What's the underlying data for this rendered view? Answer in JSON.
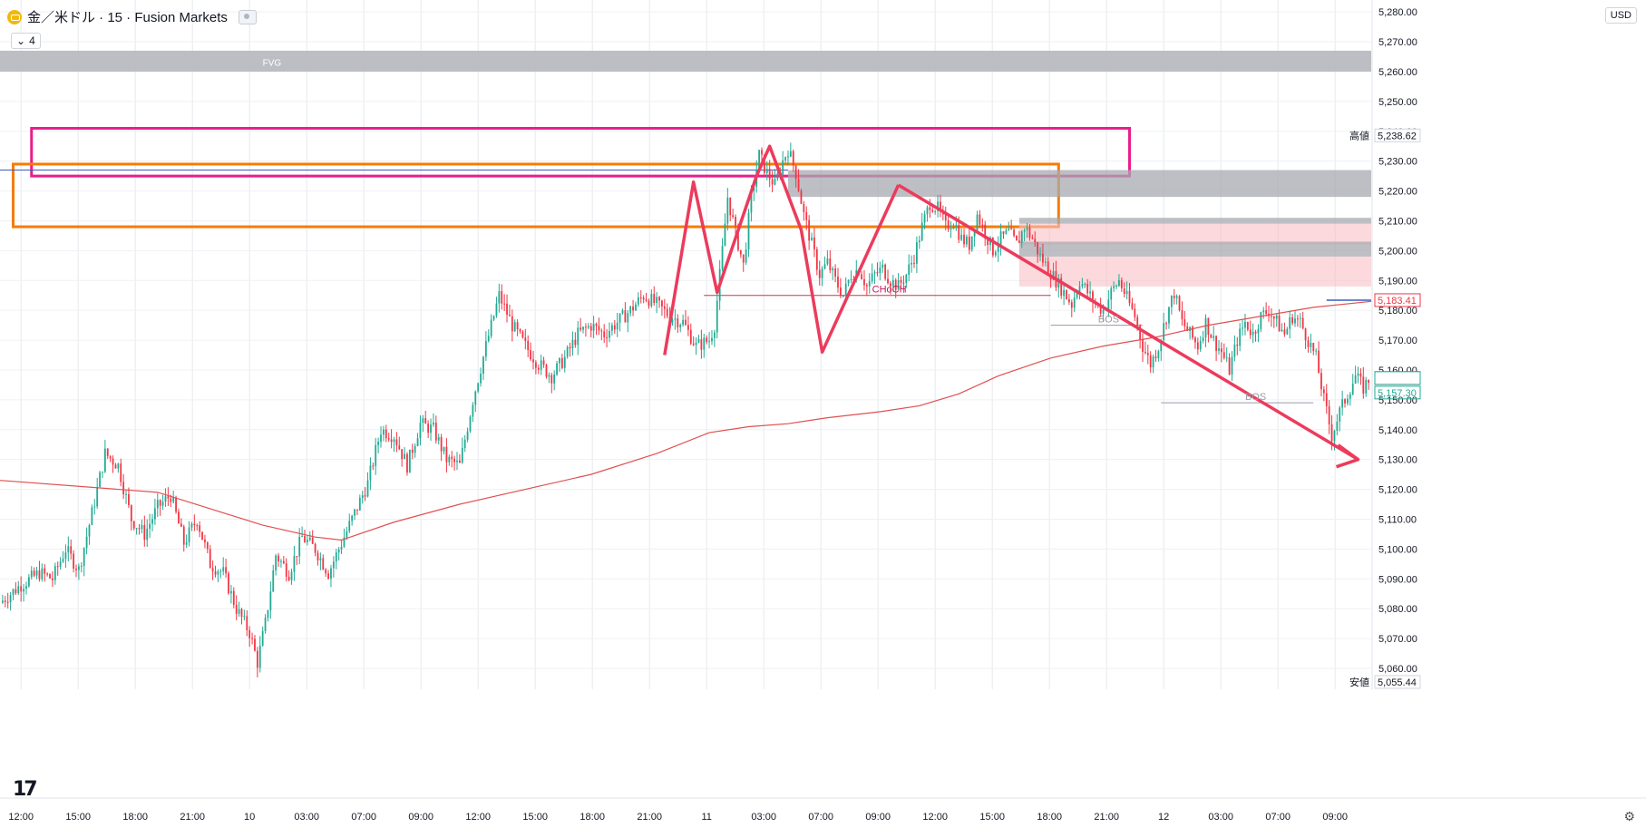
{
  "header": {
    "symbol_title": "金／米ドル · 15 · Fusion Markets",
    "indicator_count": "4",
    "currency": "USD",
    "icons": [
      "gold-symbol-icon",
      "eye-icon",
      "chevron-down-icon",
      "tradingview-logo-icon",
      "settings-icon"
    ]
  },
  "labels": {
    "high_tag": "高値",
    "low_tag": "安値",
    "fvg": "FVG",
    "choch": "CHoCH",
    "bos1": "BOS",
    "bos2": "BOS"
  },
  "colors": {
    "up": "#22ab94",
    "down": "#f23645",
    "ma": "#e05050",
    "pink_zone": "#e91e8c",
    "orange_zone": "#f57c00",
    "gray_zone": "#a8aab0",
    "light_red_zone": "#f9c0c4",
    "drawing": "#ec3b5c"
  },
  "chart_data": {
    "type": "candlestick",
    "instrument": "金／米ドル",
    "timeframe": "15",
    "broker": "Fusion Markets",
    "x_ticks": [
      "12:00",
      "15:00",
      "18:00",
      "21:00",
      "10",
      "03:00",
      "07:00",
      "09:00",
      "12:00",
      "15:00",
      "18:00",
      "21:00",
      "11",
      "03:00",
      "07:00",
      "09:00",
      "12:00",
      "15:00",
      "18:00",
      "21:00",
      "12",
      "03:00",
      "07:00",
      "09:00"
    ],
    "y_ticks": [
      "5,280.00",
      "5,270.00",
      "5,260.00",
      "5,250.00",
      "5,240.00",
      "5,230.00",
      "5,220.00",
      "5,210.00",
      "5,200.00",
      "5,190.00",
      "5,180.00",
      "5,170.00",
      "5,160.00",
      "5,150.00",
      "5,140.00",
      "5,130.00",
      "5,120.00",
      "5,110.00",
      "5,100.00",
      "5,090.00",
      "5,080.00",
      "5,070.00",
      "5,060.00"
    ],
    "ylim": [
      5053,
      5284
    ],
    "price_tags": [
      {
        "label": "5,238.62",
        "value": 5238.62,
        "style": "high"
      },
      {
        "label": "5,183.41",
        "value": 5183.41,
        "style": "red"
      },
      {
        "label": "5,157.30",
        "value": 5157.3,
        "style": "red"
      },
      {
        "label": "5,157.30",
        "value": 5157.3,
        "style": "green"
      },
      {
        "label": "5,055.44",
        "value": 5055.44,
        "style": "low"
      }
    ],
    "price_path": [
      [
        0,
        5082
      ],
      [
        8,
        5088
      ],
      [
        15,
        5092
      ],
      [
        20,
        5090
      ],
      [
        25,
        5100
      ],
      [
        30,
        5093
      ],
      [
        35,
        5112
      ],
      [
        40,
        5132
      ],
      [
        45,
        5128
      ],
      [
        50,
        5110
      ],
      [
        55,
        5105
      ],
      [
        60,
        5114
      ],
      [
        65,
        5118
      ],
      [
        70,
        5102
      ],
      [
        75,
        5110
      ],
      [
        80,
        5095
      ],
      [
        85,
        5092
      ],
      [
        90,
        5080
      ],
      [
        95,
        5072
      ],
      [
        98,
        5062
      ],
      [
        101,
        5075
      ],
      [
        105,
        5098
      ],
      [
        110,
        5092
      ],
      [
        115,
        5104
      ],
      [
        120,
        5100
      ],
      [
        125,
        5092
      ],
      [
        130,
        5102
      ],
      [
        135,
        5112
      ],
      [
        140,
        5122
      ],
      [
        145,
        5140
      ],
      [
        150,
        5138
      ],
      [
        155,
        5128
      ],
      [
        160,
        5142
      ],
      [
        165,
        5140
      ],
      [
        170,
        5130
      ],
      [
        175,
        5128
      ],
      [
        180,
        5150
      ],
      [
        185,
        5168
      ],
      [
        190,
        5185
      ],
      [
        195,
        5175
      ],
      [
        200,
        5168
      ],
      [
        205,
        5162
      ],
      [
        210,
        5158
      ],
      [
        215,
        5164
      ],
      [
        220,
        5172
      ],
      [
        225,
        5175
      ],
      [
        230,
        5172
      ],
      [
        235,
        5176
      ],
      [
        240,
        5180
      ],
      [
        245,
        5185
      ],
      [
        250,
        5182
      ],
      [
        255,
        5178
      ],
      [
        260,
        5176
      ],
      [
        265,
        5168
      ],
      [
        270,
        5170
      ],
      [
        272,
        5175
      ],
      [
        275,
        5200
      ],
      [
        277,
        5218
      ],
      [
        280,
        5206
      ],
      [
        283,
        5195
      ],
      [
        286,
        5218
      ],
      [
        289,
        5232
      ],
      [
        292,
        5226
      ],
      [
        295,
        5222
      ],
      [
        298,
        5230
      ],
      [
        300,
        5234
      ],
      [
        303,
        5226
      ],
      [
        306,
        5212
      ],
      [
        309,
        5202
      ],
      [
        312,
        5192
      ],
      [
        315,
        5196
      ],
      [
        318,
        5190
      ],
      [
        321,
        5185
      ],
      [
        324,
        5192
      ],
      [
        327,
        5194
      ],
      [
        330,
        5188
      ],
      [
        333,
        5192
      ],
      [
        336,
        5194
      ],
      [
        339,
        5190
      ],
      [
        342,
        5188
      ],
      [
        345,
        5192
      ],
      [
        348,
        5198
      ],
      [
        351,
        5208
      ],
      [
        354,
        5216
      ],
      [
        357,
        5214
      ],
      [
        360,
        5208
      ],
      [
        363,
        5210
      ],
      [
        366,
        5204
      ],
      [
        369,
        5202
      ],
      [
        372,
        5212
      ],
      [
        375,
        5206
      ],
      [
        378,
        5200
      ],
      [
        381,
        5204
      ],
      [
        384,
        5206
      ],
      [
        387,
        5202
      ],
      [
        390,
        5208
      ],
      [
        393,
        5204
      ],
      [
        396,
        5198
      ],
      [
        399,
        5194
      ],
      [
        402,
        5190
      ],
      [
        405,
        5186
      ],
      [
        408,
        5182
      ],
      [
        411,
        5190
      ],
      [
        414,
        5186
      ],
      [
        417,
        5182
      ],
      [
        420,
        5180
      ],
      [
        423,
        5186
      ],
      [
        426,
        5190
      ],
      [
        429,
        5184
      ],
      [
        432,
        5178
      ],
      [
        435,
        5168
      ],
      [
        438,
        5162
      ],
      [
        441,
        5168
      ],
      [
        444,
        5178
      ],
      [
        447,
        5186
      ],
      [
        450,
        5176
      ],
      [
        453,
        5172
      ],
      [
        456,
        5168
      ],
      [
        459,
        5176
      ],
      [
        462,
        5170
      ],
      [
        465,
        5166
      ],
      [
        468,
        5160
      ],
      [
        471,
        5170
      ],
      [
        474,
        5176
      ],
      [
        477,
        5172
      ],
      [
        480,
        5178
      ],
      [
        483,
        5180
      ],
      [
        486,
        5176
      ],
      [
        489,
        5172
      ],
      [
        492,
        5178
      ],
      [
        495,
        5176
      ],
      [
        498,
        5170
      ],
      [
        501,
        5164
      ],
      [
        504,
        5150
      ],
      [
        507,
        5138
      ],
      [
        510,
        5146
      ],
      [
        513,
        5152
      ],
      [
        516,
        5158
      ],
      [
        519,
        5154
      ],
      [
        522,
        5158
      ]
    ],
    "ma_path": [
      [
        0,
        5123
      ],
      [
        60,
        5119
      ],
      [
        100,
        5108
      ],
      [
        120,
        5104
      ],
      [
        130,
        5103
      ],
      [
        150,
        5109
      ],
      [
        175,
        5115
      ],
      [
        200,
        5120
      ],
      [
        225,
        5125
      ],
      [
        250,
        5132
      ],
      [
        270,
        5139
      ],
      [
        285,
        5141
      ],
      [
        300,
        5142
      ],
      [
        315,
        5144
      ],
      [
        335,
        5146
      ],
      [
        350,
        5148
      ],
      [
        365,
        5152
      ],
      [
        380,
        5158
      ],
      [
        400,
        5164
      ],
      [
        420,
        5168
      ],
      [
        440,
        5171
      ],
      [
        460,
        5175
      ],
      [
        480,
        5178
      ],
      [
        500,
        5181
      ],
      [
        522,
        5183
      ]
    ],
    "zones": [
      {
        "kind": "fvg",
        "x": [
          0,
          522
        ],
        "y": [
          5260,
          5267
        ]
      },
      {
        "kind": "pink",
        "x": [
          12,
          430
        ],
        "y": [
          5225,
          5241
        ]
      },
      {
        "kind": "orange",
        "x": [
          5,
          403
        ],
        "y": [
          5208,
          5229
        ]
      },
      {
        "kind": "gray",
        "x": [
          300,
          522
        ],
        "y": [
          5218,
          5227
        ]
      },
      {
        "kind": "gray",
        "x": [
          388,
          522
        ],
        "y": [
          5209,
          5211
        ]
      },
      {
        "kind": "light_red",
        "x": [
          388,
          522
        ],
        "y": [
          5202,
          5209
        ]
      },
      {
        "kind": "gray",
        "x": [
          388,
          522
        ],
        "y": [
          5198,
          5203
        ]
      },
      {
        "kind": "light_red",
        "x": [
          388,
          522
        ],
        "y": [
          5188,
          5198
        ]
      }
    ],
    "lines": [
      {
        "kind": "choch",
        "x": [
          268,
          400
        ],
        "y": 5185
      },
      {
        "kind": "bos",
        "x": [
          400,
          435
        ],
        "y": 5175
      },
      {
        "kind": "bos",
        "x": [
          442,
          500
        ],
        "y": 5149
      },
      {
        "kind": "ref",
        "x": [
          0,
          300
        ],
        "y": 5227
      },
      {
        "kind": "last",
        "x": [
          505,
          522
        ],
        "y": 5183.41
      }
    ],
    "zigzag": [
      [
        253,
        5165
      ],
      [
        264,
        5223
      ],
      [
        273,
        5186
      ],
      [
        288,
        5225
      ],
      [
        293,
        5235
      ],
      [
        305,
        5207
      ],
      [
        313,
        5166
      ],
      [
        342,
        5222
      ]
    ],
    "trend_arrow": [
      [
        342,
        5222
      ],
      [
        517,
        5130
      ]
    ],
    "annotations": [
      {
        "text_key": "labels.fvg",
        "x": 100,
        "y": 5262
      },
      {
        "text_key": "labels.choch",
        "x": 332,
        "y": 5186
      },
      {
        "text_key": "labels.bos1",
        "x": 418,
        "y": 5176
      },
      {
        "text_key": "labels.bos2",
        "x": 474,
        "y": 5150
      }
    ]
  }
}
